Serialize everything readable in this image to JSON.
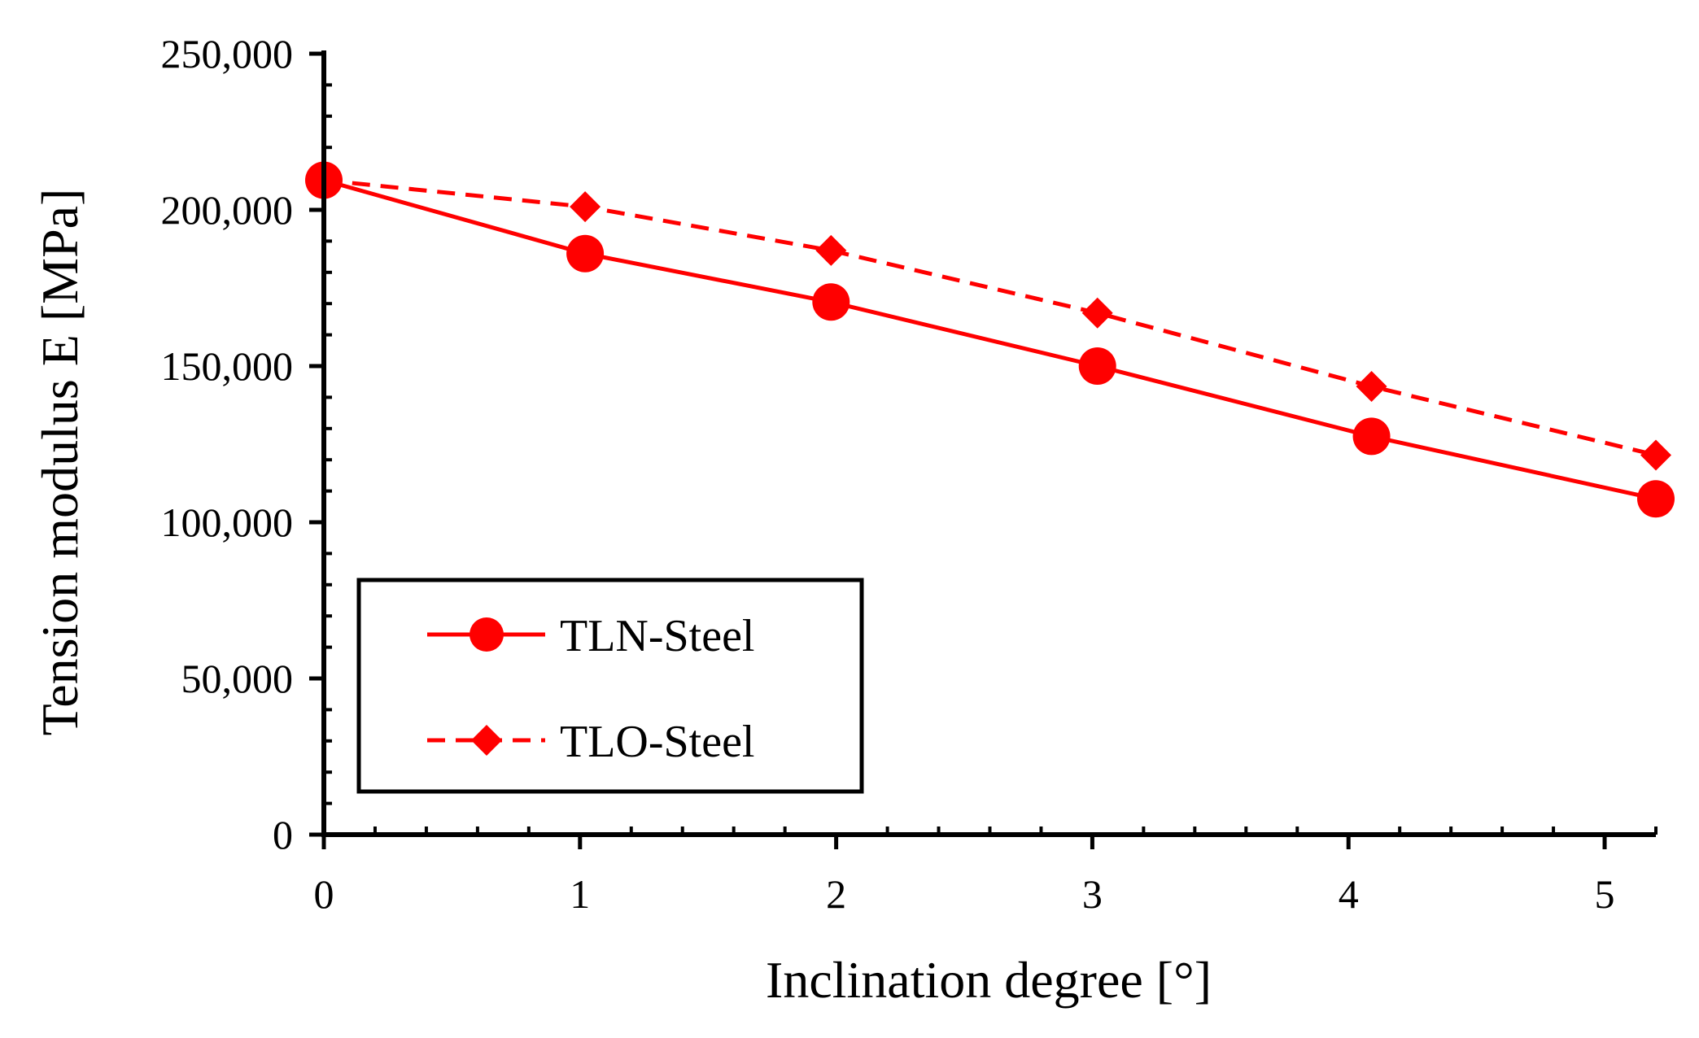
{
  "chart_data": {
    "type": "line",
    "xlabel": "Inclination degree [°]",
    "ylabel": "Tension modulus E [MPa]",
    "xlim": [
      0,
      5.2
    ],
    "ylim": [
      0,
      250000
    ],
    "x_ticks": [
      "0",
      "1",
      "2",
      "3",
      "4",
      "5"
    ],
    "y_ticks": [
      "0",
      "50,000",
      "100,000",
      "150,000",
      "200,000",
      "250,000"
    ],
    "grid": false,
    "legend_position": "bottom-left",
    "series": [
      {
        "name": "TLN-Steel",
        "marker": "circle",
        "line": "solid",
        "color": "#ff0000",
        "x": [
          0,
          1.02,
          1.98,
          3.02,
          4.09,
          5.2
        ],
        "y": [
          209500,
          186000,
          170500,
          150000,
          127500,
          107500
        ]
      },
      {
        "name": "TLO-Steel",
        "marker": "diamond",
        "line": "dashed",
        "color": "#ff0000",
        "x": [
          0,
          1.02,
          1.98,
          3.02,
          4.09,
          5.2
        ],
        "y": [
          209500,
          201000,
          187000,
          167000,
          143500,
          121500
        ]
      }
    ]
  }
}
